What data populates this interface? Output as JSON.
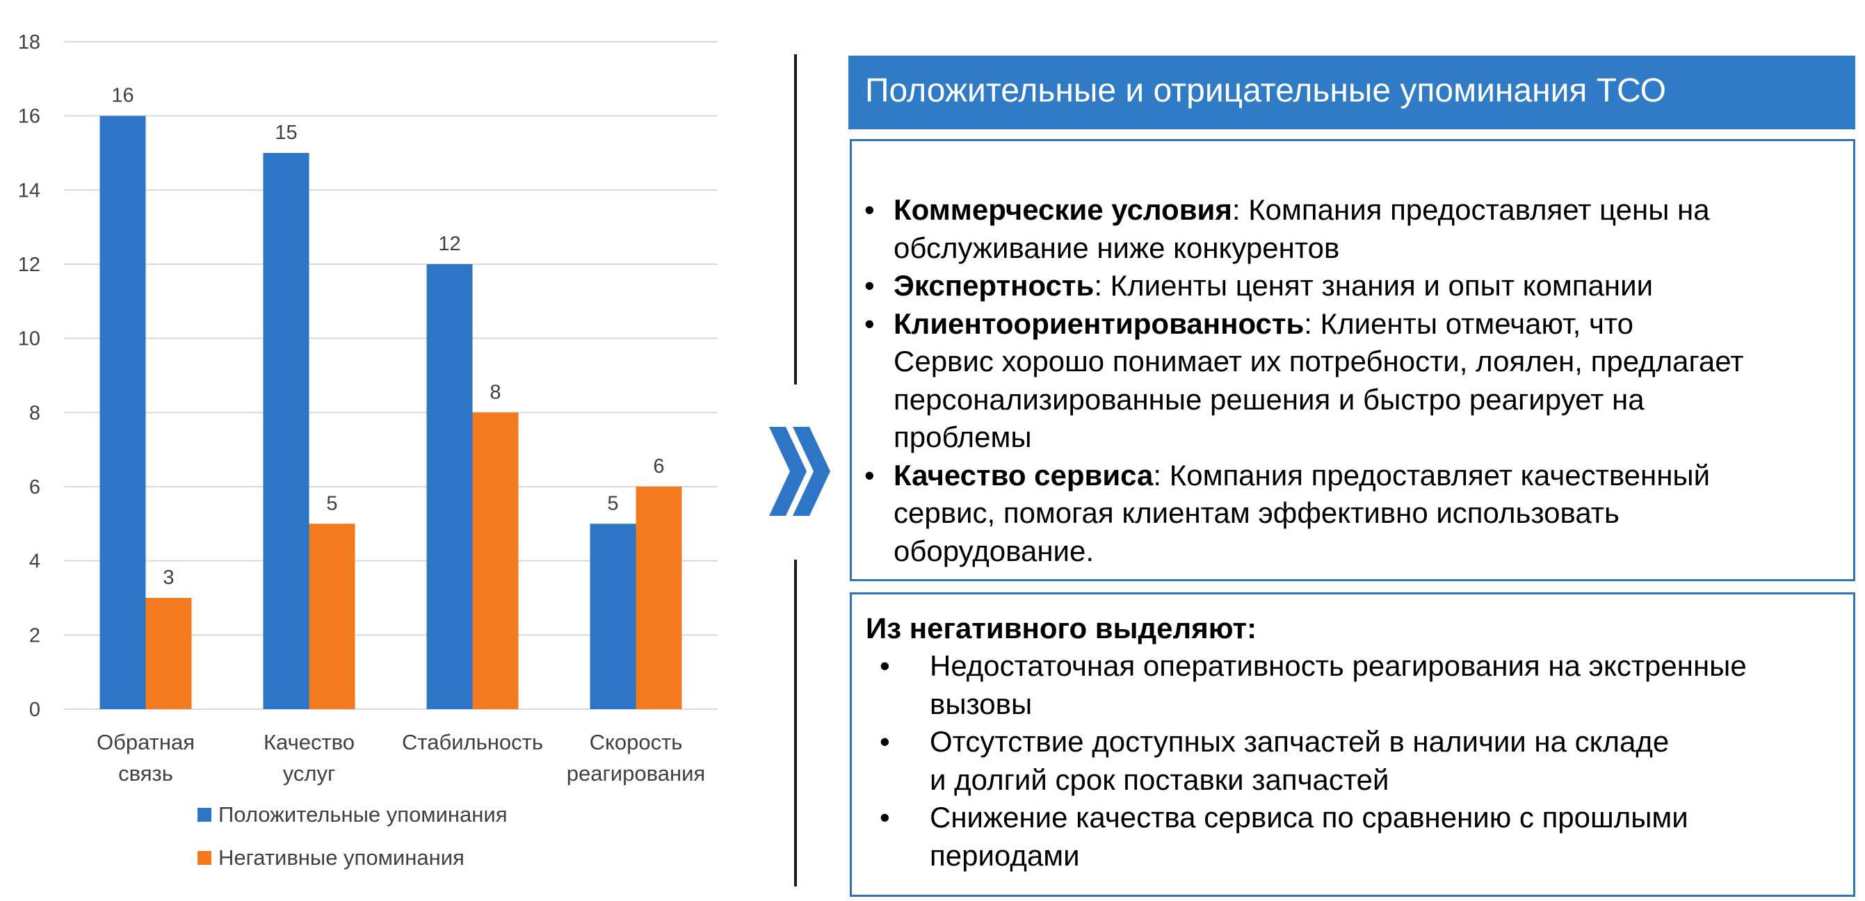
{
  "chart_data": {
    "type": "bar",
    "categories": [
      [
        "Обратная",
        "связь"
      ],
      [
        "Качество",
        "услуг"
      ],
      [
        "Стабильность"
      ],
      [
        "Скорость",
        "реагирования"
      ]
    ],
    "series": [
      {
        "name": "Положительные упоминания",
        "color": "#2e75c6",
        "values": [
          16,
          15,
          12,
          5
        ]
      },
      {
        "name": "Негативные упоминания",
        "color": "#f47a20",
        "values": [
          3,
          5,
          8,
          6
        ]
      }
    ],
    "ylim": [
      0,
      18
    ],
    "yticks": [
      0,
      2,
      4,
      6,
      8,
      10,
      12,
      14,
      16,
      18
    ],
    "grid": true,
    "legend_position": "bottom"
  },
  "arrow_icon": "double-chevron-right-icon",
  "positive": {
    "title": "Положительные и отрицательные упоминания ТСО",
    "items": [
      {
        "term": "Коммерческие условия",
        "lines": [
          ": Компания предоставляет цены на",
          "обслуживание ниже конкурентов"
        ]
      },
      {
        "term": "Экспертность",
        "lines": [
          ": Клиенты ценят знания и опыт компании"
        ]
      },
      {
        "term": "Клиентоориентированность",
        "lines": [
          ": Клиенты отмечают, что",
          "Сервис хорошо понимает их потребности, лоялен, предлагает",
          "персонализированные решения и быстро реагирует на",
          "проблемы"
        ]
      },
      {
        "term": "Качество сервиса",
        "lines": [
          ": Компания предоставляет качественный",
          "сервис, помогая клиентам эффективно использовать",
          "оборудование."
        ]
      }
    ]
  },
  "negative": {
    "heading": "Из негативного выделяют:",
    "items": [
      {
        "lines": [
          "Недостаточная оперативность реагирования на экстренные",
          "вызовы"
        ]
      },
      {
        "lines": [
          "Отсутствие доступных запчастей в наличии на складе",
          "и долгий срок поставки запчастей"
        ]
      },
      {
        "lines": [
          "Снижение качества сервиса по сравнению с прошлыми",
          "периодами"
        ]
      }
    ]
  }
}
